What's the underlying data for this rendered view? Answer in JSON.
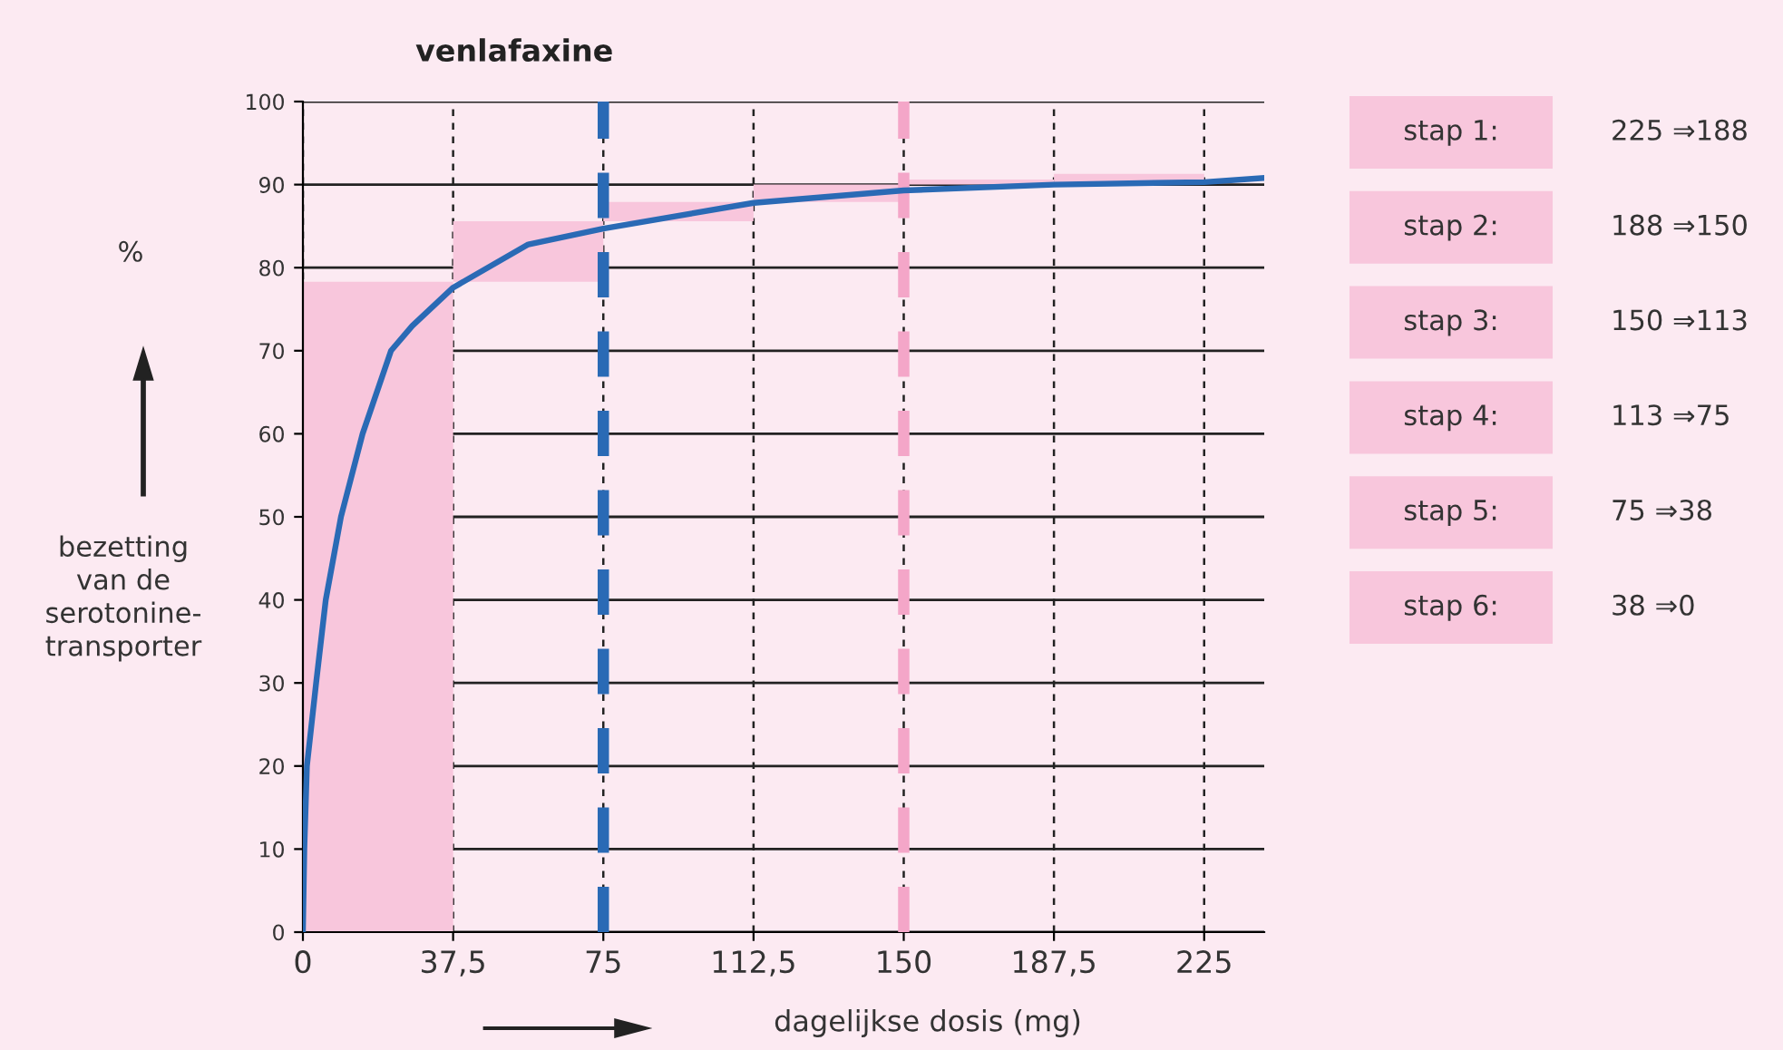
{
  "chart_data": {
    "type": "line",
    "title": "venlafaxine",
    "xlabel": "dagelijkse dosis (mg)",
    "ylabel": "bezetting\nvan de\nserotonine-\ntransporter",
    "xlim": [
      0,
      240
    ],
    "ylim": [
      0,
      100
    ],
    "xticks": [
      0,
      {
        "value": 37.5,
        "label": "37,5"
      },
      75,
      {
        "value": 112.5,
        "label": "112,5"
      },
      150,
      {
        "value": 187.5,
        "label": "187,5"
      },
      225
    ],
    "yticks": [
      0,
      10,
      20,
      30,
      40,
      50,
      60,
      70,
      80,
      90,
      100
    ],
    "grid": true,
    "series": [
      {
        "type": "bar",
        "color": "#f8c6dc",
        "x": [
          18.75,
          56.25,
          93.75,
          131.25,
          168.75,
          206.25
        ],
        "base": [
          0,
          78.3,
          85.6,
          87.9,
          90,
          90.2
        ],
        "values": [
          78.3,
          7.3,
          2.3,
          2.1,
          0.6,
          1.1
        ]
      },
      {
        "color": "#2a6ab5",
        "x": [
          0,
          0.35,
          1,
          3.3,
          5.7,
          9.5,
          14.9,
          22,
          27.3,
          37.5,
          56.25,
          75,
          112.5,
          150,
          187.5,
          225,
          240
        ],
        "values": [
          0,
          10,
          20,
          30,
          40,
          50,
          60,
          70,
          73,
          77.6,
          82.8,
          84.7,
          87.8,
          89.3,
          90,
          90.3,
          90.8
        ]
      }
    ],
    "ref_lines": [
      {
        "axis": "x",
        "value": 75,
        "color": "#2a6ab5",
        "line_style": "dashed"
      },
      {
        "axis": "x",
        "value": 150,
        "color": "#f4a6c8",
        "line_style": "dashed"
      }
    ],
    "annotations": [
      "%",
      "stap 1:",
      "225 ⇒188",
      "stap 2:",
      "188 ⇒150",
      "stap 3:",
      "150 ⇒113",
      "stap 4:",
      "113 ⇒75",
      "stap 5:",
      "75 ⇒38",
      "stap 6:",
      "38 ⇒0"
    ]
  }
}
